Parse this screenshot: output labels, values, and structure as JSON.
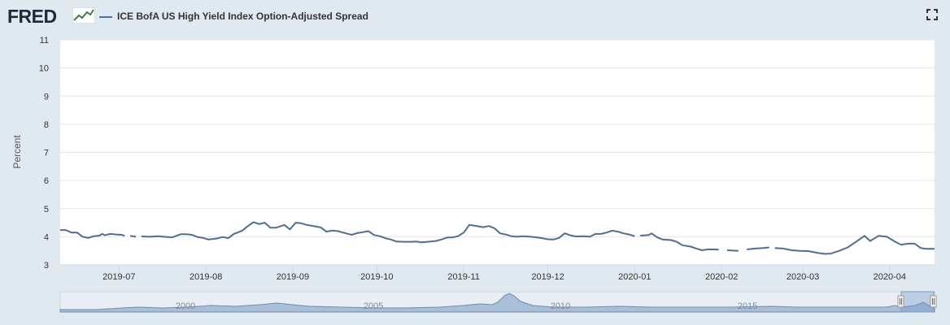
{
  "header": {
    "logo_text": "FRED",
    "legend_label": "ICE BofA US High Yield Index Option-Adjusted Spread"
  },
  "colors": {
    "line": "#4c6f94",
    "navigator_fill": "#a9bfd7",
    "navigator_line": "#6d8db2",
    "background": "#e1e9f0",
    "plot": "#ffffff"
  },
  "chart_data": {
    "type": "line",
    "ylabel": "Percent",
    "ylim": [
      3,
      11
    ],
    "yticks": [
      3,
      4,
      5,
      6,
      7,
      8,
      9,
      10,
      11
    ],
    "xlim": [
      "2019-06-10",
      "2020-04-17"
    ],
    "xticks": [
      "2019-07",
      "2019-08",
      "2019-09",
      "2019-10",
      "2019-11",
      "2019-12",
      "2020-01",
      "2020-02",
      "2020-03",
      "2020-04"
    ],
    "grid": true,
    "legend_position": "top-left",
    "series": [
      {
        "name": "ICE BofA US High Yield Index Option-Adjusted Spread",
        "segments": [
          [
            [
              "2019-06-10",
              4.24
            ],
            [
              "2019-06-12",
              4.24
            ],
            [
              "2019-06-14",
              4.15
            ],
            [
              "2019-06-16",
              4.15
            ],
            [
              "2019-06-18",
              4.0
            ],
            [
              "2019-06-20",
              3.96
            ],
            [
              "2019-06-22",
              4.02
            ],
            [
              "2019-06-24",
              4.04
            ],
            [
              "2019-06-25",
              4.1
            ],
            [
              "2019-06-26",
              4.05
            ],
            [
              "2019-06-27",
              4.08
            ],
            [
              "2019-06-28",
              4.1
            ],
            [
              "2019-06-30",
              4.08
            ],
            [
              "2019-07-02",
              4.07
            ],
            [
              "2019-07-03",
              4.03
            ]
          ],
          [
            [
              "2019-07-05",
              4.03
            ],
            [
              "2019-07-07",
              4.0
            ]
          ],
          [
            [
              "2019-07-09",
              4.01
            ],
            [
              "2019-07-12",
              4.0
            ],
            [
              "2019-07-15",
              4.02
            ],
            [
              "2019-07-17",
              4.0
            ],
            [
              "2019-07-20",
              3.98
            ],
            [
              "2019-07-23",
              4.09
            ],
            [
              "2019-07-25",
              4.09
            ],
            [
              "2019-07-27",
              4.07
            ],
            [
              "2019-07-29",
              3.99
            ],
            [
              "2019-07-31",
              3.96
            ],
            [
              "2019-08-02",
              3.9
            ],
            [
              "2019-08-05",
              3.94
            ],
            [
              "2019-08-07",
              3.99
            ],
            [
              "2019-08-09",
              3.95
            ],
            [
              "2019-08-11",
              4.1
            ],
            [
              "2019-08-14",
              4.22
            ],
            [
              "2019-08-16",
              4.38
            ],
            [
              "2019-08-18",
              4.52
            ],
            [
              "2019-08-20",
              4.45
            ],
            [
              "2019-08-22",
              4.5
            ],
            [
              "2019-08-24",
              4.32
            ],
            [
              "2019-08-26",
              4.32
            ],
            [
              "2019-08-29",
              4.42
            ],
            [
              "2019-08-31",
              4.26
            ],
            [
              "2019-09-02",
              4.5
            ],
            [
              "2019-09-04",
              4.48
            ],
            [
              "2019-09-06",
              4.42
            ],
            [
              "2019-09-09",
              4.37
            ],
            [
              "2019-09-11",
              4.33
            ],
            [
              "2019-09-13",
              4.18
            ],
            [
              "2019-09-15",
              4.22
            ],
            [
              "2019-09-17",
              4.2
            ],
            [
              "2019-09-20",
              4.12
            ],
            [
              "2019-09-22",
              4.07
            ],
            [
              "2019-09-24",
              4.13
            ],
            [
              "2019-09-26",
              4.16
            ],
            [
              "2019-09-28",
              4.2
            ],
            [
              "2019-09-30",
              4.06
            ],
            [
              "2019-10-02",
              4.02
            ],
            [
              "2019-10-04",
              3.95
            ],
            [
              "2019-10-06",
              3.9
            ],
            [
              "2019-10-08",
              3.83
            ],
            [
              "2019-10-11",
              3.82
            ],
            [
              "2019-10-13",
              3.82
            ],
            [
              "2019-10-15",
              3.83
            ],
            [
              "2019-10-17",
              3.8
            ],
            [
              "2019-10-19",
              3.82
            ],
            [
              "2019-10-22",
              3.85
            ],
            [
              "2019-10-24",
              3.9
            ],
            [
              "2019-10-26",
              3.97
            ],
            [
              "2019-10-28",
              3.98
            ],
            [
              "2019-10-30",
              4.02
            ],
            [
              "2019-11-01",
              4.15
            ],
            [
              "2019-11-03",
              4.42
            ],
            [
              "2019-11-05",
              4.39
            ],
            [
              "2019-11-08",
              4.34
            ],
            [
              "2019-11-10",
              4.38
            ],
            [
              "2019-11-12",
              4.3
            ],
            [
              "2019-11-14",
              4.12
            ],
            [
              "2019-11-16",
              4.08
            ],
            [
              "2019-11-18",
              4.02
            ],
            [
              "2019-11-20",
              4.0
            ],
            [
              "2019-11-22",
              4.02
            ],
            [
              "2019-11-25",
              4.0
            ],
            [
              "2019-11-27",
              3.98
            ],
            [
              "2019-11-29",
              3.95
            ],
            [
              "2019-12-01",
              3.91
            ],
            [
              "2019-12-03",
              3.9
            ],
            [
              "2019-12-05",
              3.96
            ],
            [
              "2019-12-07",
              4.12
            ],
            [
              "2019-12-09",
              4.05
            ],
            [
              "2019-12-11",
              4.01
            ],
            [
              "2019-12-14",
              4.02
            ],
            [
              "2019-12-16",
              4.0
            ],
            [
              "2019-12-18",
              4.1
            ],
            [
              "2019-12-20",
              4.1
            ],
            [
              "2019-12-22",
              4.15
            ],
            [
              "2019-12-24",
              4.22
            ],
            [
              "2019-12-26",
              4.18
            ],
            [
              "2019-12-28",
              4.12
            ],
            [
              "2019-12-30",
              4.08
            ],
            [
              "2020-01-01",
              4.02
            ]
          ],
          [
            [
              "2020-01-03",
              4.04
            ],
            [
              "2020-01-06",
              4.06
            ],
            [
              "2020-01-07",
              4.12
            ],
            [
              "2020-01-09",
              3.98
            ],
            [
              "2020-01-11",
              3.9
            ],
            [
              "2020-01-14",
              3.88
            ],
            [
              "2020-01-16",
              3.82
            ],
            [
              "2020-01-18",
              3.7
            ],
            [
              "2020-01-21",
              3.65
            ],
            [
              "2020-01-23",
              3.58
            ],
            [
              "2020-01-25",
              3.52
            ],
            [
              "2020-01-27",
              3.55
            ],
            [
              "2020-01-29",
              3.55
            ],
            [
              "2020-01-31",
              3.54
            ]
          ],
          [
            [
              "2020-02-03",
              3.52
            ],
            [
              "2020-02-07",
              3.5
            ]
          ],
          [
            [
              "2020-02-10",
              3.55
            ],
            [
              "2020-02-13",
              3.58
            ],
            [
              "2020-02-16",
              3.6
            ],
            [
              "2020-02-18",
              3.62
            ]
          ],
          [
            [
              "2020-02-20",
              3.6
            ],
            [
              "2020-02-23",
              3.58
            ],
            [
              "2020-02-26",
              3.52
            ],
            [
              "2020-02-29",
              3.5
            ],
            [
              "2020-03-03",
              3.49
            ],
            [
              "2020-03-06",
              3.43
            ],
            [
              "2020-03-09",
              3.39
            ],
            [
              "2020-03-11",
              3.4
            ],
            [
              "2020-03-14",
              3.5
            ],
            [
              "2020-03-17",
              3.62
            ],
            [
              "2020-03-20",
              3.82
            ],
            [
              "2020-03-23",
              4.03
            ],
            [
              "2020-03-25",
              3.85
            ],
            [
              "2020-03-28",
              4.03
            ],
            [
              "2020-03-31",
              4.0
            ],
            [
              "2020-04-03",
              3.82
            ],
            [
              "2020-04-05",
              3.72
            ],
            [
              "2020-04-08",
              3.76
            ],
            [
              "2020-04-10",
              3.75
            ],
            [
              "2020-04-12",
              3.6
            ],
            [
              "2020-04-14",
              3.57
            ],
            [
              "2020-04-17",
              3.57
            ]
          ]
        ]
      }
    ]
  },
  "navigator": {
    "labels": [
      "2000",
      "2005",
      "2010",
      "2015"
    ]
  }
}
